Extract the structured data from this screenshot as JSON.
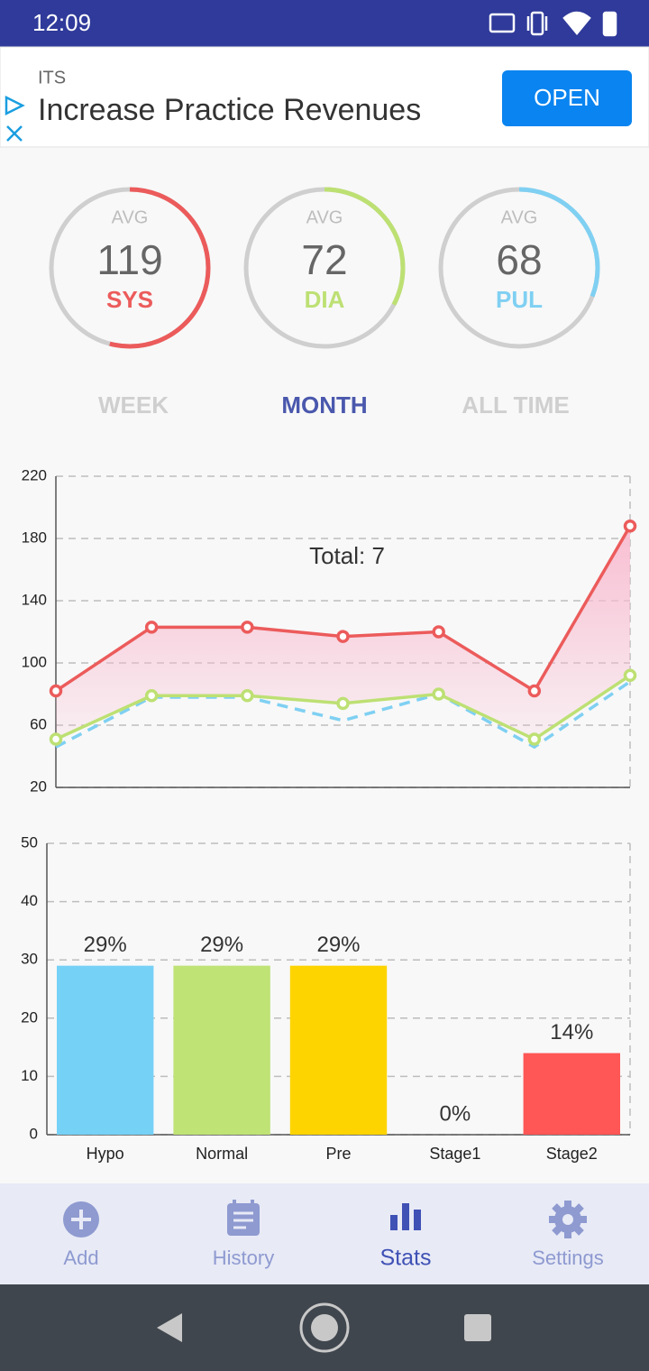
{
  "status_bar": {
    "time": "12:09"
  },
  "ad": {
    "advertiser": "ITS",
    "headline": "Increase Practice Revenues",
    "button": "OPEN"
  },
  "averages": [
    {
      "caption": "AVG",
      "value": 119,
      "label": "SYS",
      "color": "#ec5b5b"
    },
    {
      "caption": "AVG",
      "value": 72,
      "label": "DIA",
      "color": "#bde073"
    },
    {
      "caption": "AVG",
      "value": 68,
      "label": "PUL",
      "color": "#7fd0f2"
    }
  ],
  "period_tabs": {
    "items": [
      "WEEK",
      "MONTH",
      "ALL TIME"
    ],
    "selected": 1
  },
  "chart_data": [
    {
      "type": "line",
      "annotation": "Total: 7",
      "categories": [
        null,
        null,
        null,
        null,
        null,
        null,
        null
      ],
      "series": [
        {
          "color": "#ec5b5b",
          "values": [
            82,
            123,
            123,
            117,
            120,
            82,
            188
          ]
        },
        {
          "color": "#bde073",
          "values": [
            51,
            79,
            79,
            74,
            80,
            51,
            92
          ]
        },
        {
          "color": "#7fd0f2",
          "values": [
            46,
            78,
            78,
            63,
            80,
            46,
            88
          ],
          "dashed": true
        }
      ],
      "fill_between": [
        0,
        1
      ],
      "fill_color": "#f8bbd0",
      "ylim": [
        20,
        220
      ],
      "yticks": [
        20,
        60,
        100,
        140,
        180,
        220
      ],
      "grid": true
    },
    {
      "type": "bar",
      "categories": [
        "Hypo",
        "Normal",
        "Pre",
        "Stage1",
        "Stage2"
      ],
      "values": [
        29,
        29,
        29,
        0,
        14
      ],
      "value_labels": [
        "29%",
        "29%",
        "29%",
        "0%",
        "14%"
      ],
      "colors": [
        "#76d1f7",
        "#bfe375",
        "#fdd400",
        "#ffa040",
        "#ff5656"
      ],
      "ylim": [
        0,
        50
      ],
      "yticks": [
        0,
        10,
        20,
        30,
        40,
        50
      ],
      "grid": true
    }
  ],
  "bottom_nav": {
    "items": [
      "Add",
      "History",
      "Stats",
      "Settings"
    ],
    "selected": 2
  }
}
